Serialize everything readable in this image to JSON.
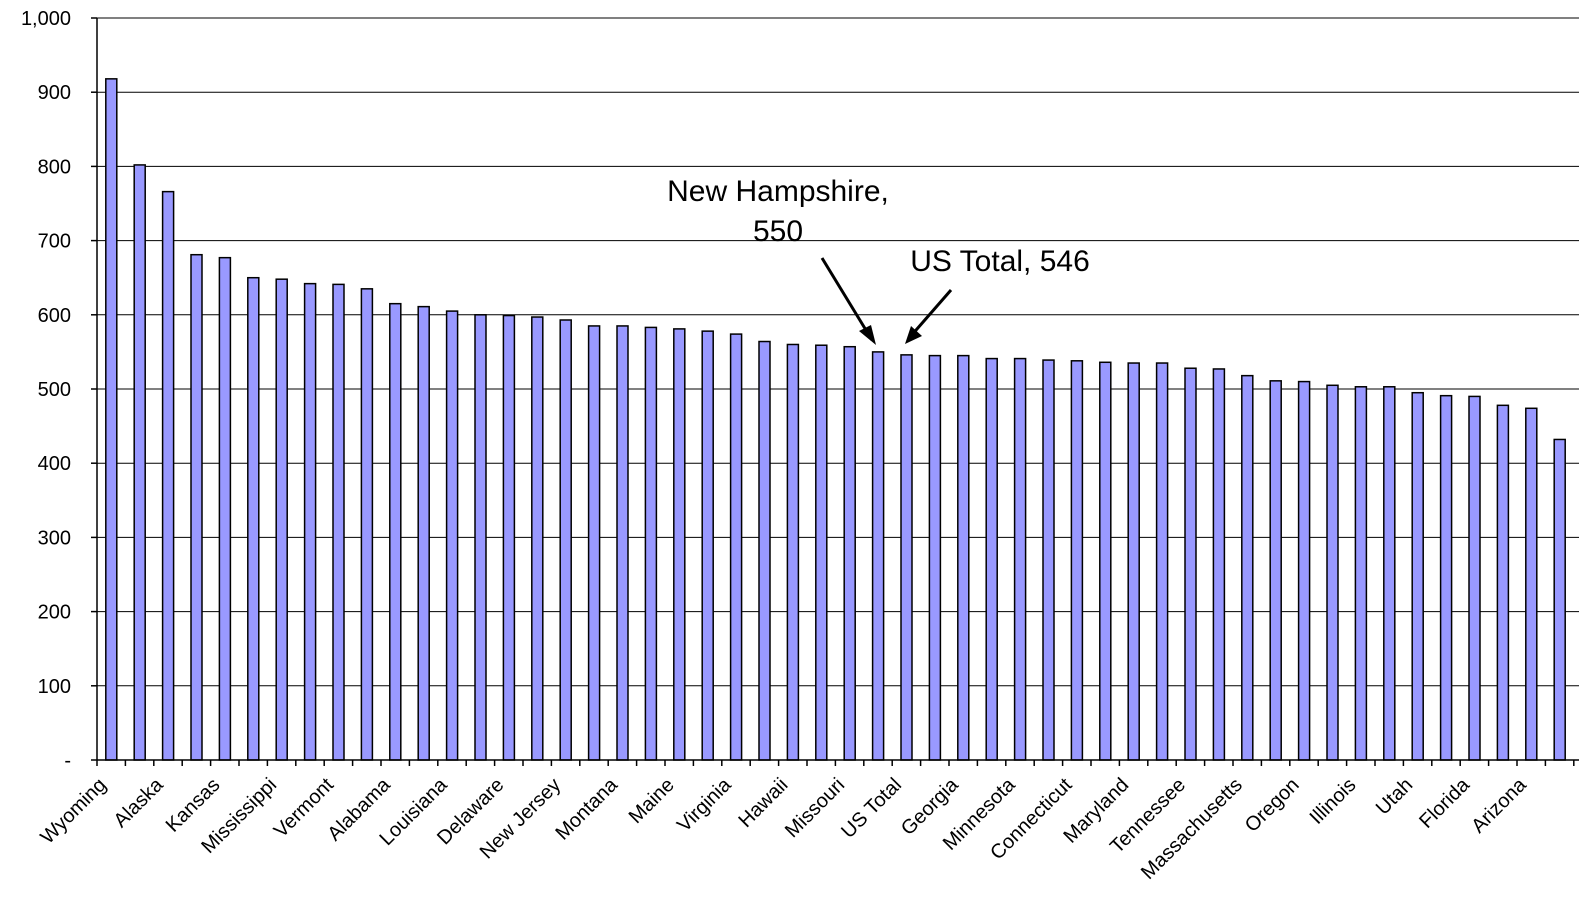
{
  "chart_data": {
    "type": "bar",
    "title": "",
    "xlabel": "",
    "ylabel": "",
    "ylim": [
      0,
      1000
    ],
    "grid": true,
    "bar_color": "#9999ff",
    "y_ticks": [
      {
        "value": 0,
        "label": "-"
      },
      {
        "value": 100,
        "label": "100"
      },
      {
        "value": 200,
        "label": "200"
      },
      {
        "value": 300,
        "label": "300"
      },
      {
        "value": 400,
        "label": "400"
      },
      {
        "value": 500,
        "label": "500"
      },
      {
        "value": 600,
        "label": "600"
      },
      {
        "value": 700,
        "label": "700"
      },
      {
        "value": 800,
        "label": "800"
      },
      {
        "value": 900,
        "label": "900"
      },
      {
        "value": 1000,
        "label": "1,000"
      }
    ],
    "categories": [
      "Wyoming",
      "",
      "Alaska",
      "",
      "Kansas",
      "",
      "Mississippi",
      "",
      "Vermont",
      "",
      "Alabama",
      "",
      "Louisiana",
      "",
      "Delaware",
      "",
      "New Jersey",
      "",
      "Montana",
      "",
      "Maine",
      "",
      "Virginia",
      "",
      "Hawaii",
      "",
      "Missouri",
      "",
      "US Total",
      "",
      "Georgia",
      "",
      "Minnesota",
      "",
      "Connecticut",
      "",
      "Maryland",
      "",
      "Tennessee",
      "",
      "Massachusetts",
      "",
      "Oregon",
      "",
      "Illinois",
      "",
      "Utah",
      "",
      "Florida",
      "",
      "Arizona",
      ""
    ],
    "values": [
      918,
      802,
      766,
      681,
      677,
      650,
      648,
      642,
      641,
      635,
      615,
      611,
      605,
      600,
      599,
      597,
      593,
      585,
      585,
      583,
      581,
      578,
      574,
      564,
      560,
      559,
      557,
      550,
      546,
      545,
      545,
      541,
      541,
      539,
      538,
      536,
      535,
      535,
      528,
      527,
      518,
      511,
      510,
      505,
      503,
      503,
      495,
      491,
      490,
      478,
      474,
      432
    ],
    "annotations": [
      {
        "lines": [
          "New Hampshire,",
          "550"
        ],
        "target_value": 550
      },
      {
        "lines": [
          "US Total,  546"
        ],
        "target_value": 546
      }
    ]
  }
}
